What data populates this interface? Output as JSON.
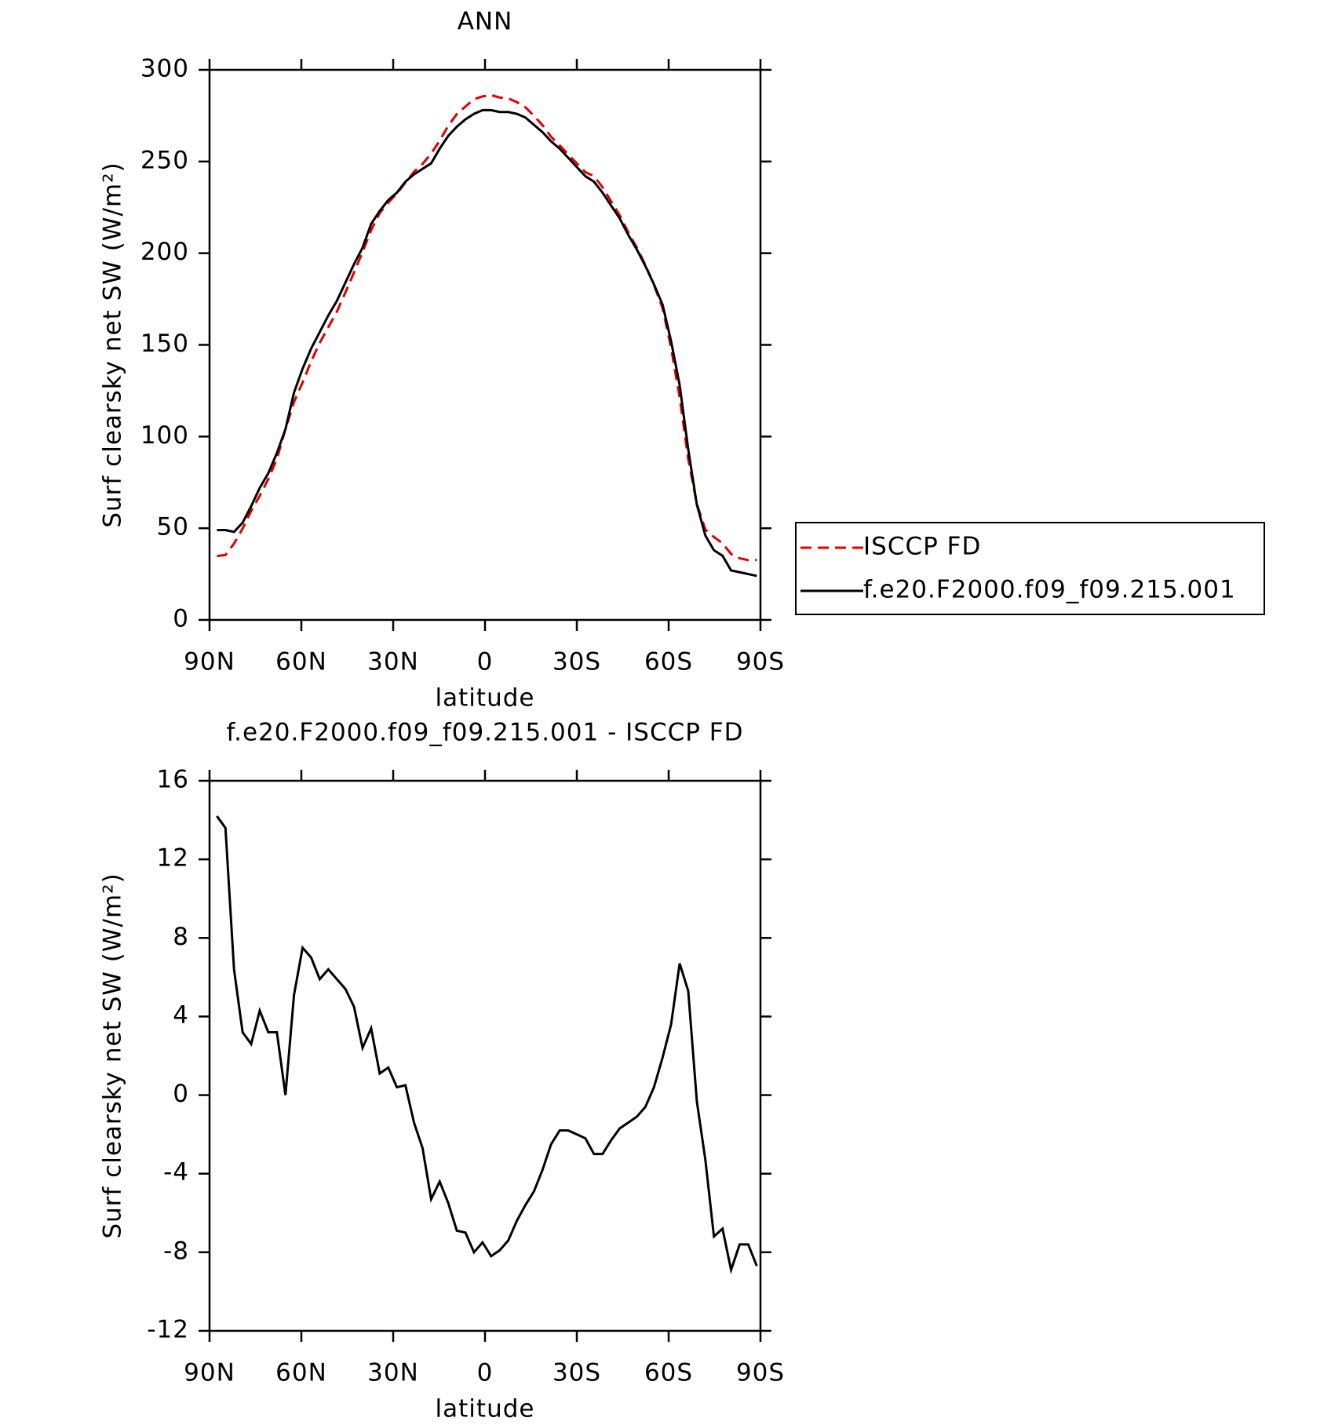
{
  "chart_data": [
    {
      "type": "line",
      "title": "ANN",
      "x_label": "latitude",
      "y_label": "Surf clearsky net SW (W/m²)",
      "x": [
        87.6,
        84.8,
        82.0,
        79.2,
        76.4,
        73.6,
        70.8,
        68.0,
        65.2,
        62.4,
        59.6,
        56.8,
        54.0,
        51.2,
        48.4,
        45.6,
        42.8,
        40.0,
        37.2,
        34.4,
        31.6,
        28.8,
        26.0,
        23.2,
        20.4,
        17.6,
        14.8,
        12.0,
        9.2,
        6.4,
        3.6,
        0.8,
        -2.0,
        -4.8,
        -7.6,
        -10.4,
        -13.2,
        -16.0,
        -18.8,
        -21.6,
        -24.4,
        -27.2,
        -30.0,
        -32.8,
        -35.6,
        -38.4,
        -41.2,
        -44.0,
        -46.8,
        -49.6,
        -52.4,
        -55.2,
        -58.0,
        -60.8,
        -63.6,
        -66.4,
        -69.2,
        -72.0,
        -74.8,
        -77.6,
        -80.4,
        -83.2,
        -86.0,
        -88.8
      ],
      "series": [
        {
          "name": "ISCCP FD",
          "color": "#e00000",
          "dashed": true,
          "values": [
            34.8,
            35.4,
            41.6,
            49.8,
            59.4,
            67.7,
            76.8,
            87.8,
            104,
            118.9,
            129.5,
            141,
            151.1,
            159.6,
            168.1,
            178.6,
            189.5,
            200.6,
            212.6,
            221.9,
            227.6,
            232.6,
            238.5,
            244.4,
            248.7,
            254.3,
            261.4,
            269.5,
            275.9,
            280,
            284,
            285.5,
            286.2,
            284.9,
            284.4,
            282.4,
            279.6,
            274.9,
            269.8,
            263.5,
            258.8,
            253.8,
            249,
            244.2,
            242,
            236,
            228.3,
            220.7,
            211.4,
            203.1,
            193.6,
            182.6,
            170.1,
            148.4,
            121.3,
            87.7,
            63.3,
            49.3,
            45.2,
            41.8,
            35.9,
            33.6,
            32.6,
            32.7
          ]
        },
        {
          "name": "f.e20.F2000.f09_f09.215.001",
          "color": "#000000",
          "dashed": false,
          "values": [
            49,
            49,
            48,
            53,
            62,
            72,
            80,
            91,
            104,
            124,
            137,
            148,
            157,
            166,
            174,
            184,
            194,
            203,
            216,
            223,
            229,
            233,
            239,
            243,
            246,
            249,
            257,
            264,
            269,
            273,
            276,
            278,
            278,
            277,
            277,
            276,
            274,
            270,
            266,
            261,
            257,
            252,
            247,
            242,
            239,
            233,
            226,
            219,
            210,
            202,
            193,
            183,
            172,
            152,
            128,
            93,
            63,
            46,
            38,
            35,
            27,
            26,
            25,
            24
          ]
        }
      ],
      "xlim": [
        90,
        -90
      ],
      "xticks": [
        {
          "value": 90,
          "label": "90N"
        },
        {
          "value": 60,
          "label": "60N"
        },
        {
          "value": 30,
          "label": "30N"
        },
        0,
        {
          "value": -30,
          "label": "30S"
        },
        {
          "value": -60,
          "label": "60S"
        },
        {
          "value": -90,
          "label": "90S"
        }
      ],
      "ylim": [
        0,
        300
      ],
      "yticks": [
        0,
        50,
        100,
        150,
        200,
        250,
        300
      ],
      "legend": "right"
    },
    {
      "type": "line",
      "title": "f.e20.F2000.f09_f09.215.001 - ISCCP FD",
      "x_label": "latitude",
      "y_label": "Surf clearsky net SW (W/m²)",
      "x": [
        87.6,
        84.8,
        82.0,
        79.2,
        76.4,
        73.6,
        70.8,
        68.0,
        65.2,
        62.4,
        59.6,
        56.8,
        54.0,
        51.2,
        48.4,
        45.6,
        42.8,
        40.0,
        37.2,
        34.4,
        31.6,
        28.8,
        26.0,
        23.2,
        20.4,
        17.6,
        14.8,
        12.0,
        9.2,
        6.4,
        3.6,
        0.8,
        -2.0,
        -4.8,
        -7.6,
        -10.4,
        -13.2,
        -16.0,
        -18.8,
        -21.6,
        -24.4,
        -27.2,
        -30.0,
        -32.8,
        -35.6,
        -38.4,
        -41.2,
        -44.0,
        -46.8,
        -49.6,
        -52.4,
        -55.2,
        -58.0,
        -60.8,
        -63.6,
        -66.4,
        -69.2,
        -72.0,
        -74.8,
        -77.6,
        -80.4,
        -83.2,
        -86.0,
        -88.8
      ],
      "values": [
        14.2,
        13.6,
        6.4,
        3.2,
        2.6,
        4.3,
        3.2,
        3.2,
        0,
        5.1,
        7.5,
        7.0,
        5.9,
        6.4,
        5.9,
        5.4,
        4.5,
        2.4,
        3.4,
        1.1,
        1.4,
        0.4,
        0.5,
        -1.4,
        -2.7,
        -5.3,
        -4.4,
        -5.5,
        -6.9,
        -7.0,
        -8.0,
        -7.5,
        -8.2,
        -7.9,
        -7.4,
        -6.4,
        -5.6,
        -4.9,
        -3.8,
        -2.5,
        -1.8,
        -1.8,
        -2.0,
        -2.2,
        -3.0,
        -3.0,
        -2.3,
        -1.7,
        -1.4,
        -1.1,
        -0.6,
        0.4,
        1.9,
        3.6,
        6.7,
        5.3,
        -0.3,
        -3.3,
        -7.2,
        -6.8,
        -8.9,
        -7.6,
        -7.6,
        -8.7
      ],
      "color": "#000000",
      "xlim": [
        90,
        -90
      ],
      "xticks": [
        {
          "value": 90,
          "label": "90N"
        },
        {
          "value": 60,
          "label": "60N"
        },
        {
          "value": 30,
          "label": "30N"
        },
        0,
        {
          "value": -30,
          "label": "30S"
        },
        {
          "value": -60,
          "label": "60S"
        },
        {
          "value": -90,
          "label": "90S"
        }
      ],
      "ylim": [
        -12,
        16
      ],
      "yticks": [
        -12,
        -8,
        -4,
        0,
        4,
        8,
        12,
        16
      ]
    }
  ]
}
